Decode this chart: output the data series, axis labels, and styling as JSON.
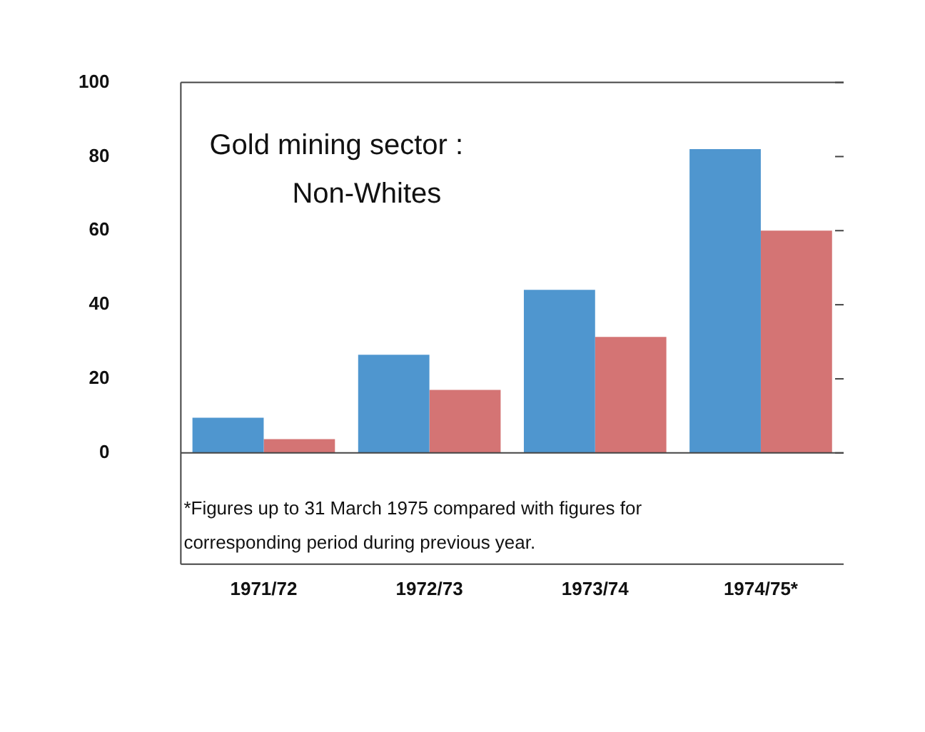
{
  "chart_data": {
    "type": "bar",
    "title": "Gold mining sector :\nNon-Whites",
    "categories": [
      "1971/72",
      "1972/73",
      "1973/74",
      "1974/75*"
    ],
    "series": [
      {
        "color": "#4f96cf",
        "values": [
          9.5,
          26.5,
          44,
          82
        ]
      },
      {
        "color": "#d47474",
        "values": [
          3.7,
          17,
          31.3,
          60
        ]
      }
    ],
    "ylim": [
      0,
      100
    ],
    "yticks": [
      0,
      20,
      40,
      60,
      80,
      100
    ],
    "grid": false,
    "legend": false,
    "annotations": [
      "*Figures up to 31 March 1975 compared with figures for\ncorresponding period during previous year."
    ]
  }
}
